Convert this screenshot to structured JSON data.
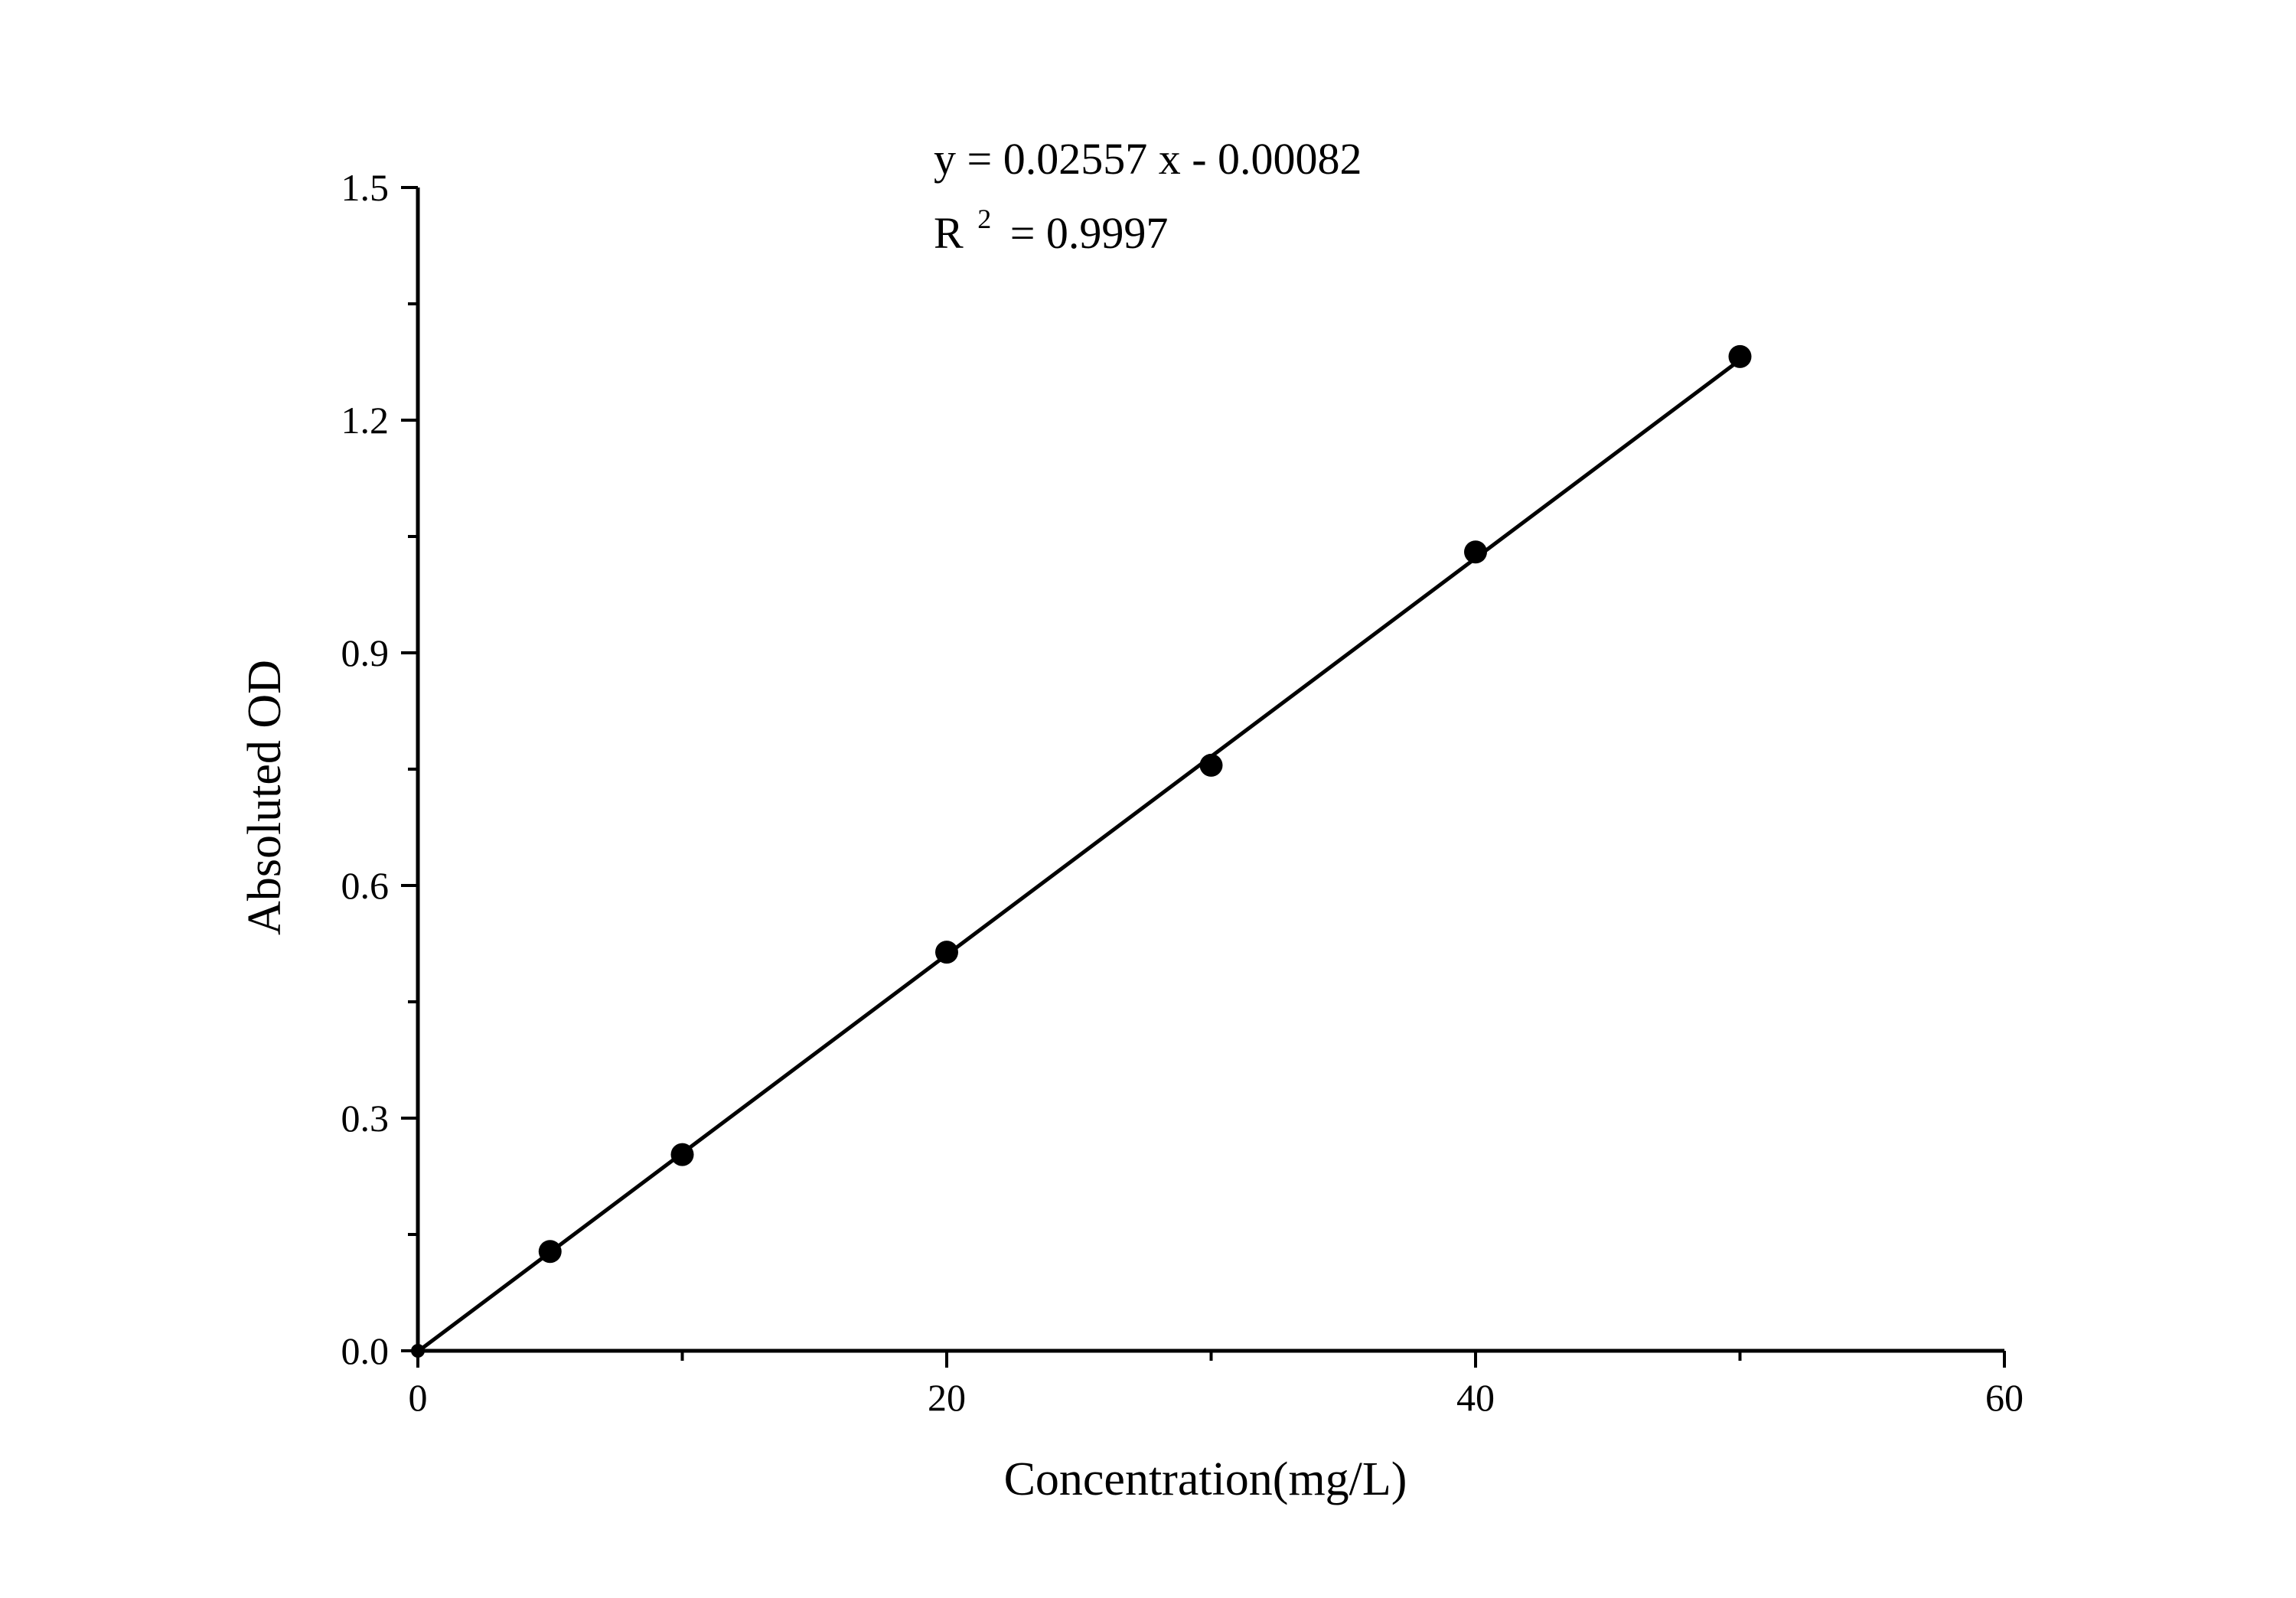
{
  "chart_data": {
    "type": "scatter",
    "title": "",
    "xlabel": "Concentration(mg/L)",
    "ylabel": "Absoluted OD",
    "xlim": [
      0,
      60
    ],
    "ylim": [
      0,
      1.5
    ],
    "x_ticks": [
      "0",
      "20",
      "40",
      "60"
    ],
    "y_ticks": [
      "0.0",
      "0.3",
      "0.6",
      "0.9",
      "1.2",
      "1.5"
    ],
    "grid": false,
    "series": [
      {
        "points": [
          {
            "x": 0,
            "y": 0.0
          },
          {
            "x": 5,
            "y": 0.128
          },
          {
            "x": 10,
            "y": 0.253
          },
          {
            "x": 20,
            "y": 0.514
          },
          {
            "x": 30,
            "y": 0.755
          },
          {
            "x": 40,
            "y": 1.03
          },
          {
            "x": 50,
            "y": 1.282
          }
        ]
      }
    ],
    "fit_line": {
      "slope": 0.02557,
      "intercept": -0.00082,
      "x_range": [
        0,
        50
      ]
    },
    "annotations": {
      "equation": "y = 0.02557 x - 0.00082",
      "r2_base": "R",
      "r2_exp": "2",
      "r2_value": "= 0.9997"
    }
  },
  "colors": {
    "axis": "#000000",
    "markers": "#000000",
    "fit_line": "#000000",
    "background": "#ffffff"
  }
}
